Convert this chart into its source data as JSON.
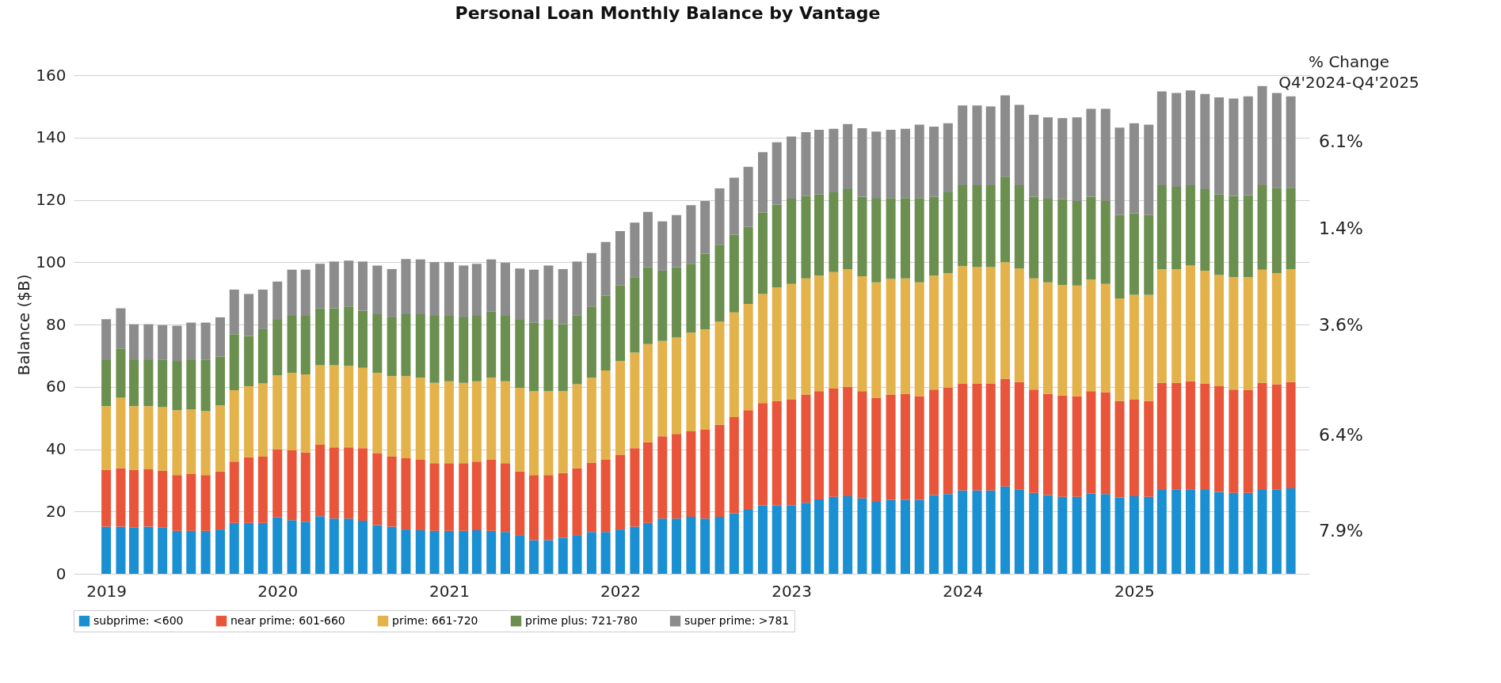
{
  "chart_data": {
    "type": "bar",
    "title": "Personal Loan Monthly Balance by Vantage",
    "ylabel": "Balance ($B)",
    "stacked": true,
    "grid": "y",
    "legend": "bottom",
    "ylim": [
      0,
      160
    ],
    "yticks": [
      0,
      20,
      40,
      60,
      80,
      100,
      120,
      140,
      160
    ],
    "xlim": [
      "2018-11-01",
      "2026-01-01"
    ],
    "xticks": [
      "2019",
      "2020",
      "2021",
      "2022",
      "2023",
      "2024",
      "2025"
    ],
    "x": [
      "2019-01",
      "2019-02",
      "2019-03",
      "2019-04",
      "2019-05",
      "2019-06",
      "2019-07",
      "2019-08",
      "2019-09",
      "2019-10",
      "2019-11",
      "2019-12",
      "2020-01",
      "2020-02",
      "2020-03",
      "2020-04",
      "2020-05",
      "2020-06",
      "2020-07",
      "2020-08",
      "2020-09",
      "2020-10",
      "2020-11",
      "2020-12",
      "2021-01",
      "2021-02",
      "2021-03",
      "2021-04",
      "2021-05",
      "2021-06",
      "2021-07",
      "2021-08",
      "2021-09",
      "2021-10",
      "2021-11",
      "2021-12",
      "2022-01",
      "2022-02",
      "2022-03",
      "2022-04",
      "2022-05",
      "2022-06",
      "2022-07",
      "2022-08",
      "2022-09",
      "2022-10",
      "2022-11",
      "2022-12",
      "2023-01",
      "2023-02",
      "2023-03",
      "2023-04",
      "2023-05",
      "2023-06",
      "2023-07",
      "2023-08",
      "2023-09",
      "2023-10",
      "2023-11",
      "2023-12",
      "2024-01",
      "2024-02",
      "2024-03",
      "2024-04",
      "2024-05",
      "2024-06",
      "2024-07",
      "2024-08",
      "2024-09",
      "2024-10",
      "2024-11",
      "2024-12",
      "2025-01",
      "2025-02",
      "2025-03",
      "2025-04",
      "2025-05",
      "2025-06",
      "2025-07",
      "2025-08",
      "2025-09",
      "2025-10",
      "2025-11",
      "2025-12"
    ],
    "series": [
      {
        "name": "subprime: <600",
        "color": "#1a8fd1",
        "values": [
          15.1,
          15.1,
          14.8,
          15.1,
          14.8,
          13.8,
          13.8,
          13.8,
          14.2,
          16.3,
          16.3,
          16.3,
          18.1,
          17.2,
          16.7,
          18.5,
          17.7,
          17.7,
          17.0,
          15.6,
          15.1,
          14.2,
          14.0,
          13.8,
          13.8,
          13.8,
          14.0,
          13.8,
          13.4,
          12.4,
          10.8,
          10.8,
          11.6,
          12.4,
          13.4,
          13.4,
          14.2,
          15.1,
          16.3,
          17.7,
          17.7,
          18.3,
          17.7,
          18.3,
          19.4,
          20.6,
          22.0,
          22.0,
          22.0,
          22.8,
          23.9,
          24.7,
          24.9,
          24.2,
          23.1,
          23.7,
          23.7,
          23.7,
          25.3,
          25.6,
          26.7,
          26.7,
          26.7,
          28.0,
          27.1,
          26.0,
          25.3,
          24.7,
          24.7,
          25.8,
          25.6,
          24.5,
          24.9,
          24.7,
          26.9,
          27.1,
          27.1,
          26.9,
          26.3,
          26.0,
          26.0,
          26.9,
          27.1,
          27.4
        ]
      },
      {
        "name": "near prime: 601-660",
        "color": "#e8553a",
        "values": [
          18.2,
          18.8,
          18.5,
          18.4,
          18.3,
          17.9,
          18.2,
          17.9,
          18.6,
          19.7,
          21.1,
          21.3,
          21.9,
          22.4,
          22.2,
          22.9,
          22.9,
          22.9,
          23.3,
          23.1,
          22.5,
          22.9,
          22.6,
          21.7,
          21.7,
          21.7,
          22.0,
          22.8,
          22.1,
          20.4,
          20.9,
          20.9,
          20.7,
          21.5,
          22.3,
          23.2,
          24.0,
          25.2,
          25.9,
          26.4,
          27.2,
          27.4,
          28.5,
          29.5,
          30.9,
          31.9,
          32.8,
          33.4,
          33.9,
          34.7,
          34.7,
          34.7,
          35.1,
          34.4,
          33.4,
          33.8,
          34.1,
          33.3,
          33.8,
          34.1,
          34.4,
          34.4,
          34.4,
          34.6,
          34.4,
          33.1,
          32.5,
          32.5,
          32.3,
          32.8,
          32.7,
          30.9,
          31.0,
          30.7,
          34.4,
          34.2,
          34.7,
          34.2,
          33.9,
          33.1,
          32.9,
          34.4,
          33.7,
          34.1
        ]
      },
      {
        "name": "prime: 661-720",
        "color": "#e3b24a",
        "values": [
          20.5,
          22.6,
          20.5,
          20.3,
          20.4,
          20.8,
          20.7,
          20.5,
          21.2,
          22.9,
          22.8,
          23.5,
          23.7,
          24.9,
          25.1,
          25.5,
          26.3,
          26.1,
          25.8,
          25.8,
          25.8,
          26.3,
          26.3,
          25.8,
          26.3,
          25.8,
          25.8,
          26.3,
          26.3,
          26.9,
          26.9,
          26.9,
          26.3,
          26.9,
          27.2,
          28.7,
          30.1,
          30.7,
          31.5,
          30.6,
          30.9,
          31.7,
          32.3,
          33.1,
          33.6,
          34.1,
          35.0,
          36.5,
          37.1,
          37.3,
          37.1,
          37.4,
          37.8,
          36.9,
          37.0,
          37.1,
          37.0,
          36.5,
          36.6,
          36.8,
          37.6,
          37.3,
          37.3,
          37.4,
          36.5,
          35.7,
          35.7,
          35.5,
          35.5,
          35.8,
          34.7,
          33.0,
          33.6,
          34.1,
          36.5,
          36.5,
          37.1,
          36.2,
          35.7,
          36.1,
          36.3,
          36.3,
          35.7,
          36.3
        ]
      },
      {
        "name": "prime plus: 721-780",
        "color": "#6b8f4e",
        "values": [
          15.0,
          15.8,
          15.0,
          15.0,
          15.1,
          15.8,
          16.1,
          16.4,
          15.7,
          18.0,
          16.1,
          17.4,
          17.8,
          18.3,
          18.8,
          18.3,
          18.3,
          19.1,
          18.3,
          18.8,
          18.9,
          19.9,
          20.4,
          21.5,
          21.0,
          21.0,
          21.0,
          21.2,
          21.0,
          21.8,
          22.0,
          22.9,
          21.5,
          22.2,
          22.9,
          23.9,
          24.2,
          24.2,
          24.7,
          22.6,
          22.6,
          22.1,
          24.2,
          24.7,
          24.9,
          24.7,
          26.1,
          26.6,
          27.4,
          26.4,
          26.0,
          25.6,
          25.6,
          25.5,
          26.9,
          26.0,
          25.8,
          27.1,
          25.3,
          25.9,
          26.0,
          26.3,
          26.3,
          27.4,
          26.7,
          26.2,
          26.9,
          27.5,
          27.1,
          26.6,
          26.6,
          26.7,
          26.2,
          25.6,
          26.9,
          26.4,
          25.8,
          26.1,
          25.8,
          26.1,
          26.3,
          27.1,
          27.4,
          26.1
        ]
      },
      {
        "name": "super prime: >781",
        "color": "#8c8c8c",
        "values": [
          12.9,
          12.9,
          11.3,
          11.3,
          11.2,
          11.3,
          11.8,
          12.0,
          12.6,
          14.3,
          13.5,
          12.7,
          12.3,
          14.8,
          14.8,
          14.3,
          15.0,
          14.7,
          15.8,
          15.6,
          15.5,
          17.7,
          17.6,
          17.2,
          17.2,
          16.6,
          16.7,
          16.8,
          17.0,
          16.5,
          17.0,
          17.4,
          17.7,
          17.2,
          17.1,
          17.3,
          17.5,
          17.5,
          17.7,
          15.8,
          16.7,
          18.8,
          16.9,
          18.1,
          18.3,
          19.3,
          19.4,
          20.0,
          19.9,
          20.5,
          20.8,
          20.4,
          20.9,
          22.0,
          21.5,
          21.9,
          22.2,
          23.5,
          22.5,
          22.2,
          25.6,
          25.6,
          25.3,
          26.1,
          25.8,
          26.3,
          26.1,
          26.0,
          26.9,
          28.2,
          29.6,
          28.1,
          28.9,
          29.0,
          30.1,
          30.1,
          30.4,
          30.6,
          31.2,
          31.2,
          31.7,
          31.8,
          30.4,
          29.3
        ]
      }
    ],
    "annotations": [
      "% Change\nQ4'2024-Q4'2025",
      "7.9%",
      "6.4%",
      "3.6%",
      "1.4%",
      "6.1%"
    ]
  }
}
